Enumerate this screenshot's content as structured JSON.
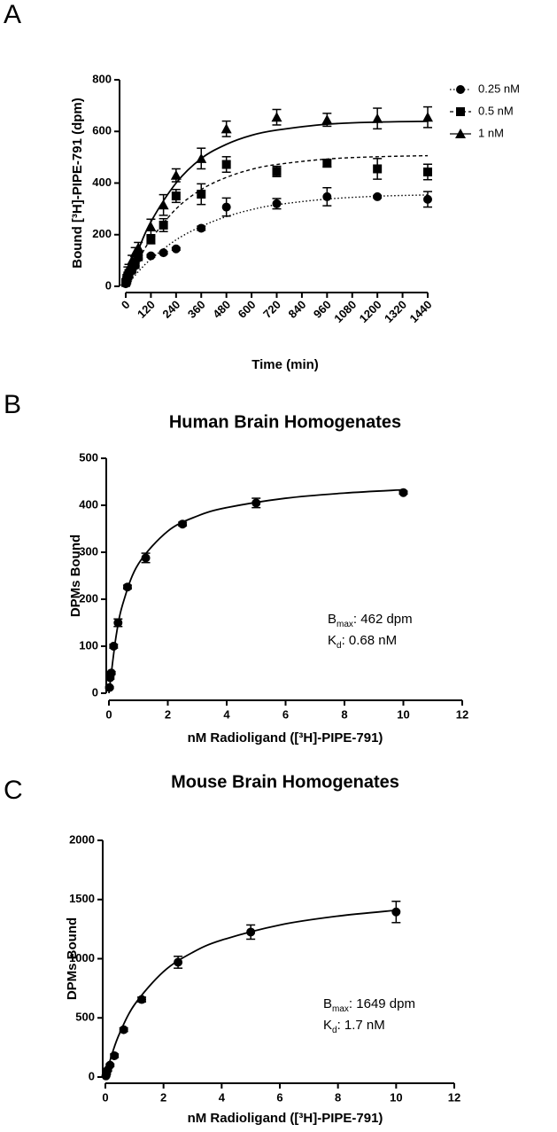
{
  "chart_data": [
    {
      "type": "scatter",
      "panel_label": "A",
      "xlabel": "Time (min)",
      "ylabel": "Bound [³H]-PIPE-791 (dpm)",
      "xlim": [
        0,
        1440
      ],
      "xticks": [
        0,
        120,
        240,
        360,
        480,
        600,
        720,
        840,
        960,
        1080,
        1200,
        1320,
        1440
      ],
      "ylim": [
        0,
        800
      ],
      "yticks": [
        0,
        200,
        400,
        600,
        800
      ],
      "legend": "top-right",
      "x": [
        0,
        5,
        10,
        15,
        30,
        45,
        60,
        120,
        180,
        240,
        360,
        480,
        720,
        960,
        1200,
        1440
      ],
      "series": [
        {
          "name": "0.25 nM",
          "color": "#000000",
          "marker": "circle",
          "line_style": "dotted",
          "values": [
            10,
            20,
            35,
            40,
            60,
            80,
            110,
            118,
            130,
            145,
            225,
            307,
            320,
            347,
            347,
            337
          ],
          "errors": [
            3,
            5,
            5,
            8,
            8,
            10,
            10,
            5,
            5,
            5,
            8,
            35,
            20,
            35,
            5,
            30
          ],
          "fit": {
            "x": [
              0,
              60,
              120,
              240,
              360,
              480,
              600,
              720,
              960,
              1200,
              1440
            ],
            "values": [
              0,
              57,
              105,
              180,
              232,
              270,
              297,
              316,
              338,
              349,
              354
            ]
          }
        },
        {
          "name": "0.5 nM",
          "color": "#000000",
          "marker": "square",
          "line_style": "dashed",
          "values": [
            15,
            25,
            40,
            50,
            70,
            90,
            120,
            180,
            237,
            350,
            357,
            472,
            445,
            477,
            455,
            443
          ],
          "errors": [
            5,
            8,
            10,
            10,
            12,
            12,
            15,
            15,
            25,
            25,
            40,
            30,
            20,
            15,
            40,
            30
          ],
          "fit": {
            "x": [
              0,
              60,
              120,
              240,
              360,
              480,
              600,
              720,
              960,
              1200,
              1440
            ],
            "values": [
              0,
              100,
              182,
              300,
              375,
              422,
              453,
              472,
              493,
              502,
              506
            ]
          }
        },
        {
          "name": "1 nM",
          "color": "#000000",
          "marker": "triangle",
          "line_style": "solid",
          "values": [
            20,
            35,
            60,
            70,
            100,
            130,
            150,
            230,
            315,
            430,
            495,
            610,
            655,
            645,
            650,
            655
          ],
          "errors": [
            5,
            10,
            15,
            15,
            20,
            20,
            20,
            30,
            40,
            25,
            40,
            30,
            30,
            25,
            40,
            40
          ],
          "fit": {
            "x": [
              0,
              60,
              120,
              240,
              360,
              480,
              600,
              720,
              960,
              1200,
              1440
            ],
            "values": [
              0,
              140,
              250,
              400,
              495,
              550,
              585,
              605,
              628,
              636,
              639
            ]
          }
        }
      ]
    },
    {
      "type": "scatter",
      "panel_label": "B",
      "title": "Human Brain Homogenates",
      "xlabel": "nM Radioligand ([³H]-PIPE-791)",
      "ylabel": "DPMs Bound",
      "xlim": [
        0,
        12
      ],
      "xticks": [
        0,
        2,
        4,
        6,
        8,
        10,
        12
      ],
      "ylim": [
        0,
        500
      ],
      "yticks": [
        0,
        100,
        200,
        300,
        400,
        500
      ],
      "x": [
        0.02,
        0.04,
        0.08,
        0.16,
        0.31,
        0.63,
        1.25,
        2.5,
        5,
        10
      ],
      "series": [
        {
          "color": "#000000",
          "marker": "circle",
          "line_style": "solid",
          "values": [
            12,
            33,
            43,
            100,
            150,
            226,
            288,
            360,
            405,
            427
          ],
          "errors": [
            2,
            3,
            3,
            4,
            8,
            4,
            10,
            4,
            10,
            3
          ],
          "fit": {
            "x": [
              0,
              0.25,
              0.5,
              1,
              2,
              3,
              4,
              6,
              8,
              10
            ],
            "values": [
              0,
              124,
              196,
              275,
              345,
              377,
              395,
              415,
              426,
              433
            ]
          }
        }
      ],
      "annotations": [
        [
          "B",
          "max",
          ": 462 dpm"
        ],
        [
          "K",
          "d",
          ": 0.68 nM"
        ]
      ]
    },
    {
      "type": "scatter",
      "panel_label": "C",
      "title": "Mouse Brain Homogenates",
      "xlabel": "nM Radioligand ([³H]-PIPE-791)",
      "ylabel": "DPMs Bound",
      "xlim": [
        0,
        12
      ],
      "xticks": [
        0,
        2,
        4,
        6,
        8,
        10,
        12
      ],
      "ylim": [
        0,
        2000
      ],
      "yticks": [
        0,
        500,
        1000,
        1500,
        2000
      ],
      "x": [
        0.02,
        0.04,
        0.08,
        0.16,
        0.31,
        0.63,
        1.25,
        2.5,
        5,
        10
      ],
      "series": [
        {
          "color": "#000000",
          "marker": "circle",
          "line_style": "solid",
          "values": [
            10,
            30,
            60,
            100,
            180,
            400,
            655,
            970,
            1225,
            1395
          ],
          "errors": [
            5,
            8,
            10,
            10,
            15,
            15,
            20,
            50,
            60,
            90
          ],
          "fit": {
            "x": [
              0,
              0.25,
              0.5,
              1,
              2,
              3,
              4,
              6,
              8,
              10
            ],
            "values": [
              0,
              211,
              375,
              611,
              891,
              1053,
              1157,
              1285,
              1360,
              1409
            ]
          }
        }
      ],
      "annotations": [
        [
          "B",
          "max",
          ": 1649 dpm"
        ],
        [
          "K",
          "d",
          ": 1.7 nM"
        ]
      ]
    }
  ]
}
